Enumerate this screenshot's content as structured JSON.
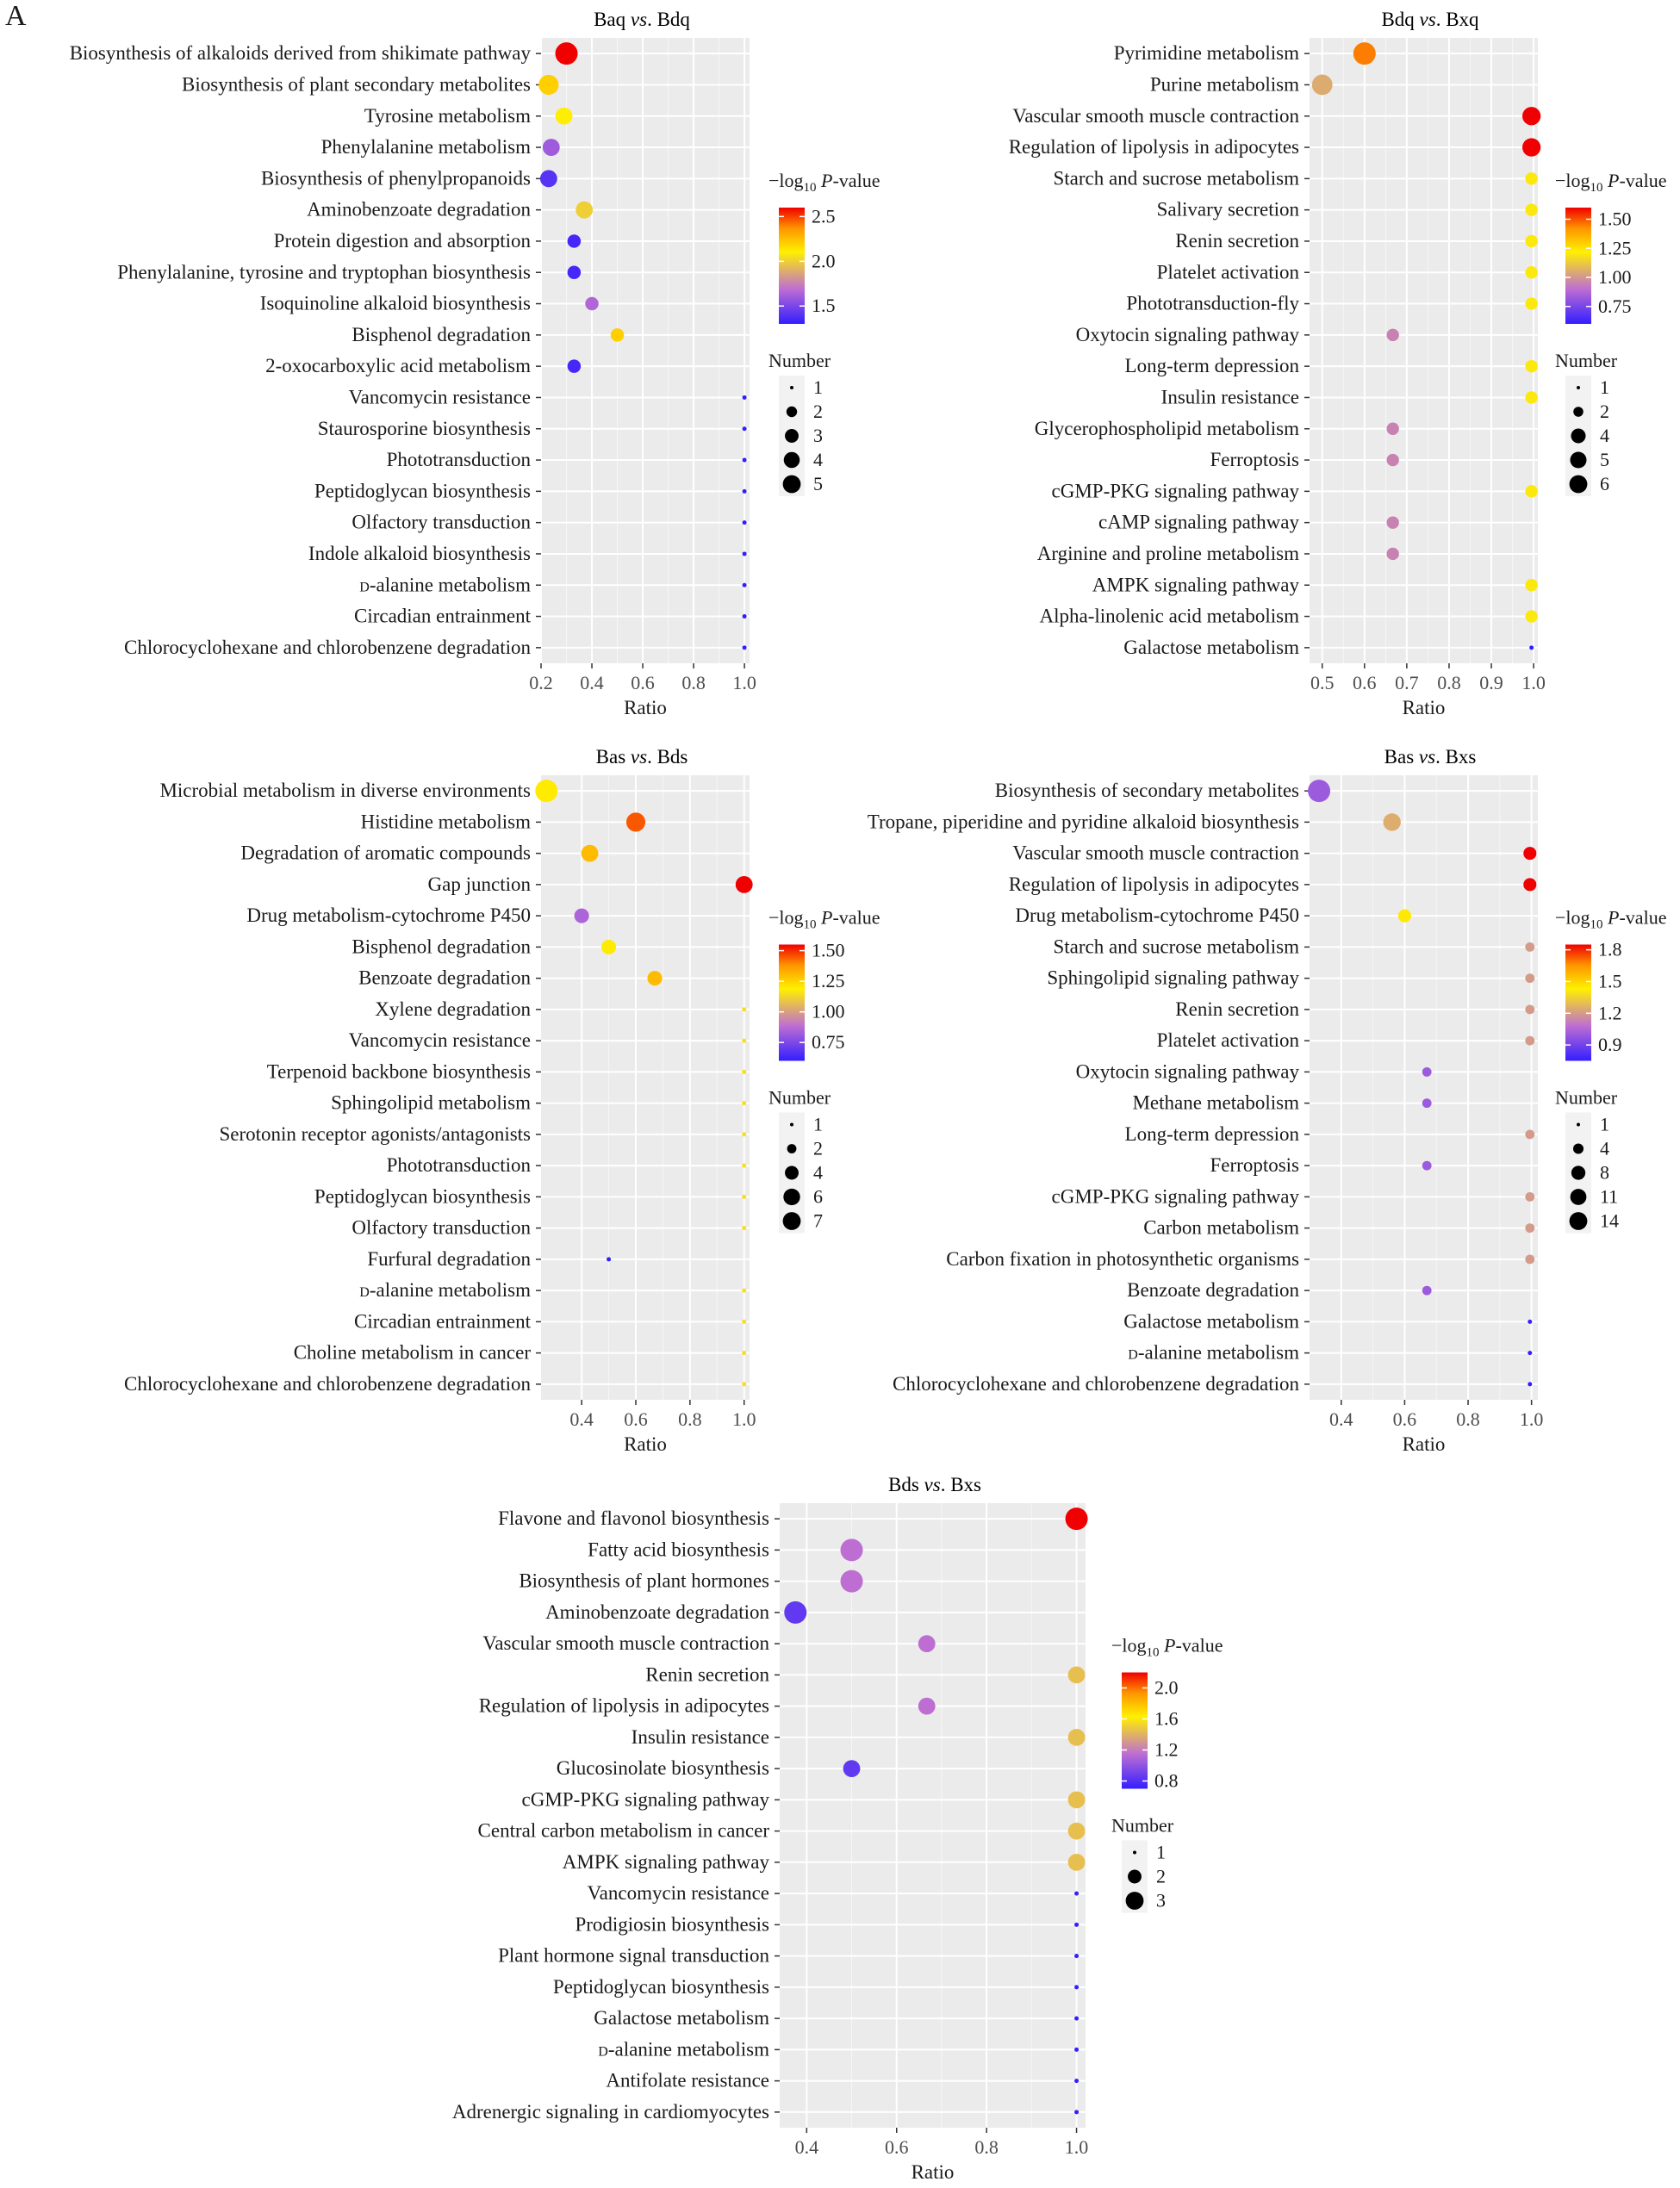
{
  "figure_label": "A",
  "chart_data": [
    {
      "type": "scatter",
      "title": "Baq vs. Bdq",
      "title_parts": [
        "Baq ",
        "vs",
        ". Bdq"
      ],
      "xlabel": "Ratio",
      "xlim": [
        0.2,
        1.02
      ],
      "xticks": [
        0.2,
        0.4,
        0.6,
        0.8,
        1.0
      ],
      "xtick_labels": [
        "0.2",
        "0.4",
        "0.6",
        "0.8",
        "1.0"
      ],
      "categories": [
        "Biosynthesis of alkaloids derived from shikimate pathway",
        "Biosynthesis of plant secondary metabolites",
        "Tyrosine metabolism",
        "Phenylalanine metabolism",
        "Biosynthesis of phenylpropanoids",
        "Aminobenzoate degradation",
        "Protein digestion and absorption",
        "Phenylalanine, tyrosine and tryptophan biosynthesis",
        "Isoquinoline alkaloid biosynthesis",
        "Bisphenol degradation",
        "2-oxocarboxylic acid metabolism",
        "Vancomycin resistance",
        "Staurosporine biosynthesis",
        "Phototransduction",
        "Peptidoglycan biosynthesis",
        "Olfactory transduction",
        "Indole alkaloid biosynthesis",
        "D-alanine metabolism",
        "Circadian entrainment",
        "Chlorocyclohexane and chlorobenzene degradation"
      ],
      "ratio": [
        0.3,
        0.23,
        0.29,
        0.24,
        0.23,
        0.37,
        0.33,
        0.33,
        0.4,
        0.5,
        0.33,
        1.0,
        1.0,
        1.0,
        1.0,
        1.0,
        1.0,
        1.0,
        1.0,
        1.0
      ],
      "number": [
        5,
        4,
        3,
        3,
        3,
        3,
        2,
        2,
        2,
        2,
        2,
        1,
        1,
        1,
        1,
        1,
        1,
        1,
        1,
        1
      ],
      "neg_log10_p": [
        2.6,
        2.2,
        2.1,
        1.6,
        1.4,
        2.0,
        1.35,
        1.35,
        1.65,
        2.2,
        1.35,
        1.3,
        1.3,
        1.3,
        1.3,
        1.3,
        1.3,
        1.3,
        1.3,
        1.3
      ],
      "color_scale": {
        "title": "−log₁₀ P-value",
        "range": [
          1.3,
          2.6
        ],
        "ticks": [
          1.5,
          2.0,
          2.5
        ],
        "tick_labels": [
          "1.5",
          "2.0",
          "2.5"
        ]
      },
      "size_legend": {
        "title": "Number",
        "values": [
          1,
          2,
          3,
          4,
          5
        ],
        "labels": [
          "1",
          "2",
          "3",
          "4",
          "5"
        ]
      },
      "grid": true
    },
    {
      "type": "scatter",
      "title": "Bdq vs. Bxq",
      "title_parts": [
        "Bdq ",
        "vs",
        ". Bxq"
      ],
      "xlabel": "Ratio",
      "xlim": [
        0.47,
        1.01
      ],
      "xticks": [
        0.5,
        0.6,
        0.7,
        0.8,
        0.9,
        1.0
      ],
      "xtick_labels": [
        "0.5",
        "0.6",
        "0.7",
        "0.8",
        "0.9",
        "1.0"
      ],
      "categories": [
        "Pyrimidine metabolism",
        "Purine metabolism",
        "Vascular smooth muscle contraction",
        "Regulation of lipolysis in adipocytes",
        "Starch and sucrose metabolism",
        "Salivary secretion",
        "Renin secretion",
        "Platelet activation",
        "Phototransduction-fly",
        "Oxytocin signaling pathway",
        "Long-term depression",
        "Insulin resistance",
        "Glycerophospholipid metabolism",
        "Ferroptosis",
        "cGMP-PKG signaling pathway",
        "cAMP signaling pathway",
        "Arginine and proline metabolism",
        "AMPK signaling pathway",
        "Alpha-linolenic acid metabolism",
        "Galactose metabolism"
      ],
      "ratio": [
        0.6,
        0.5,
        0.995,
        0.995,
        0.995,
        0.995,
        0.995,
        0.995,
        0.995,
        0.667,
        0.995,
        0.995,
        0.667,
        0.667,
        0.995,
        0.667,
        0.667,
        0.995,
        0.995,
        0.995
      ],
      "number": [
        6,
        5,
        4,
        4,
        2,
        2,
        2,
        2,
        2,
        2,
        2,
        2,
        2,
        2,
        2,
        2,
        2,
        2,
        2,
        1
      ],
      "neg_log10_p": [
        1.45,
        1.05,
        1.6,
        1.6,
        1.2,
        1.2,
        1.2,
        1.2,
        1.2,
        0.95,
        1.2,
        1.2,
        0.95,
        0.95,
        1.2,
        0.95,
        0.95,
        1.2,
        1.2,
        0.6
      ],
      "color_scale": {
        "title": "−log₁₀ P-value",
        "range": [
          0.6,
          1.6
        ],
        "ticks": [
          0.75,
          1.0,
          1.25,
          1.5
        ],
        "tick_labels": [
          "0.75",
          "1.00",
          "1.25",
          "1.50"
        ]
      },
      "size_legend": {
        "title": "Number",
        "values": [
          1,
          2,
          4,
          5,
          6
        ],
        "labels": [
          "1",
          "2",
          "4",
          "5",
          "6"
        ]
      },
      "grid": true
    },
    {
      "type": "scatter",
      "title": "Bas vs. Bds",
      "title_parts": [
        "Bas ",
        "vs",
        ". Bds"
      ],
      "xlabel": "Ratio",
      "xlim": [
        0.25,
        1.02
      ],
      "xticks": [
        0.4,
        0.6,
        0.8,
        1.0
      ],
      "xtick_labels": [
        "0.4",
        "0.6",
        "0.8",
        "1.0"
      ],
      "categories": [
        "Microbial metabolism in diverse environments",
        "Histidine metabolism",
        "Degradation of aromatic compounds",
        "Gap junction",
        "Drug metabolism-cytochrome P450",
        "Bisphenol degradation",
        "Benzoate degradation",
        "Xylene degradation",
        "Vancomycin resistance",
        "Terpenoid backbone  biosynthesis",
        "Sphingolipid metabolism",
        "Serotonin receptor agonists/antagonists",
        "Phototransduction",
        "Peptidoglycan biosynthesis",
        "Olfactory transduction",
        "Furfural degradation",
        "D-alanine metabolism",
        "Circadian entrainment",
        "Choline metabolism in cancer",
        "Chlorocyclohexane and chlorobenzene degradation"
      ],
      "ratio": [
        0.27,
        0.6,
        0.43,
        1.0,
        0.4,
        0.5,
        0.67,
        1.0,
        1.0,
        1.0,
        1.0,
        1.0,
        1.0,
        1.0,
        1.0,
        0.5,
        1.0,
        1.0,
        1.0,
        1.0
      ],
      "number": [
        7,
        5,
        4,
        4,
        3,
        3,
        3,
        1,
        1,
        1,
        1,
        1,
        1,
        1,
        1,
        1,
        1,
        1,
        1,
        1
      ],
      "neg_log10_p": [
        1.2,
        1.45,
        1.3,
        1.55,
        0.85,
        1.2,
        1.3,
        1.15,
        1.15,
        1.15,
        1.15,
        1.15,
        1.15,
        1.15,
        1.15,
        0.6,
        1.15,
        1.15,
        1.15,
        1.15
      ],
      "color_scale": {
        "title": "−log₁₀ P-value",
        "range": [
          0.6,
          1.55
        ],
        "ticks": [
          0.75,
          1.0,
          1.25,
          1.5
        ],
        "tick_labels": [
          "0.75",
          "1.00",
          "1.25",
          "1.50"
        ]
      },
      "size_legend": {
        "title": "Number",
        "values": [
          1,
          2,
          4,
          6,
          7
        ],
        "labels": [
          "1",
          "2",
          "4",
          "6",
          "7"
        ]
      },
      "grid": true
    },
    {
      "type": "scatter",
      "title": "Bas vs. Bxs",
      "title_parts": [
        "Bas ",
        "vs",
        ". Bxs"
      ],
      "xlabel": "Ratio",
      "xlim": [
        0.3,
        1.02
      ],
      "xticks": [
        0.4,
        0.6,
        0.8,
        1.0
      ],
      "xtick_labels": [
        "0.4",
        "0.6",
        "0.8",
        "1.0"
      ],
      "categories": [
        "Biosynthesis of secondary metabolites",
        "Tropane, piperidine and pyridine alkaloid biosynthesis",
        "Vascular smooth muscle contraction",
        "Regulation of lipolysis in adipocytes",
        "Drug metabolism-cytochrome P450",
        "Starch and sucrose metabolism",
        "Sphingolipid signaling pathway",
        "Renin secretion",
        "Platelet activation",
        "Oxytocin signaling pathway",
        "Methane metabolism",
        "Long-term depression",
        "Ferroptosis",
        "cGMP-PKG signaling pathway",
        "Carbon metabolism",
        "Carbon fixation in photosynthetic organisms",
        "Benzoate degradation",
        "Galactose metabolism",
        "D-alanine metabolism",
        "Chlorocyclohexane and chlorobenzene degradation"
      ],
      "ratio": [
        0.33,
        0.56,
        0.995,
        0.995,
        0.6,
        0.995,
        0.995,
        0.995,
        0.995,
        0.67,
        0.67,
        0.995,
        0.67,
        0.995,
        0.995,
        0.995,
        0.67,
        0.995,
        0.995,
        0.995
      ],
      "number": [
        14,
        8,
        4,
        4,
        4,
        2,
        2,
        2,
        2,
        2,
        2,
        2,
        2,
        2,
        2,
        2,
        2,
        1,
        1,
        1
      ],
      "neg_log10_p": [
        1.0,
        1.25,
        1.85,
        1.85,
        1.45,
        1.2,
        1.2,
        1.2,
        1.2,
        1.0,
        1.0,
        1.2,
        1.0,
        1.2,
        1.2,
        1.2,
        1.0,
        0.75,
        0.75,
        0.75
      ],
      "color_scale": {
        "title": "−log₁₀ P-value",
        "range": [
          0.75,
          1.85
        ],
        "ticks": [
          0.9,
          1.2,
          1.5,
          1.8
        ],
        "tick_labels": [
          "0.9",
          "1.2",
          "1.5",
          "1.8"
        ]
      },
      "size_legend": {
        "title": "Number",
        "values": [
          1,
          4,
          8,
          11,
          14
        ],
        "labels": [
          "1",
          "4",
          "8",
          "11",
          "14"
        ]
      },
      "grid": true
    },
    {
      "type": "scatter",
      "title": "Bds vs. Bxs",
      "title_parts": [
        "Bds ",
        "vs",
        ". Bxs"
      ],
      "xlabel": "Ratio",
      "xlim": [
        0.34,
        1.02
      ],
      "xticks": [
        0.4,
        0.6,
        0.8,
        1.0
      ],
      "xtick_labels": [
        "0.4",
        "0.6",
        "0.8",
        "1.0"
      ],
      "categories": [
        "Flavone and flavonol biosynthesis",
        "Fatty acid biosynthesis",
        "Biosynthesis of plant hormones",
        "Aminobenzoate degradation",
        "Vascular smooth muscle contraction",
        "Renin secretion",
        "Regulation of lipolysis in adipocytes",
        "Insulin resistance",
        "Glucosinolate biosynthesis",
        "cGMP-PKG signaling pathway",
        "Central carbon metabolism in cancer",
        "AMPK signaling pathway",
        "Vancomycin resistance",
        "Prodigiosin biosynthesis",
        "Plant hormone signal transduction",
        "Peptidoglycan biosynthesis",
        "Galactose metabolism",
        "D-alanine metabolism",
        "Antifolate resistance",
        "Adrenergic signaling in cardiomyocytes"
      ],
      "ratio": [
        1.0,
        0.5,
        0.5,
        0.375,
        0.667,
        1.0,
        0.667,
        1.0,
        0.5,
        1.0,
        1.0,
        1.0,
        1.0,
        1.0,
        1.0,
        1.0,
        1.0,
        1.0,
        1.0,
        1.0
      ],
      "number": [
        3,
        3,
        3,
        3,
        2,
        2,
        2,
        2,
        2,
        2,
        2,
        2,
        1,
        1,
        1,
        1,
        1,
        1,
        1,
        1
      ],
      "neg_log10_p": [
        2.2,
        1.15,
        1.15,
        0.85,
        1.15,
        1.45,
        1.15,
        1.45,
        0.85,
        1.45,
        1.45,
        1.45,
        0.7,
        0.7,
        0.7,
        0.7,
        0.7,
        0.7,
        0.7,
        0.7
      ],
      "color_scale": {
        "title": "−log₁₀ P-value",
        "range": [
          0.7,
          2.2
        ],
        "ticks": [
          0.8,
          1.2,
          1.6,
          2.0
        ],
        "tick_labels": [
          "0.8",
          "1.2",
          "1.6",
          "2.0"
        ]
      },
      "size_legend": {
        "title": "Number",
        "values": [
          1,
          2,
          3
        ],
        "labels": [
          "1",
          "2",
          "3"
        ]
      },
      "grid": true
    }
  ]
}
